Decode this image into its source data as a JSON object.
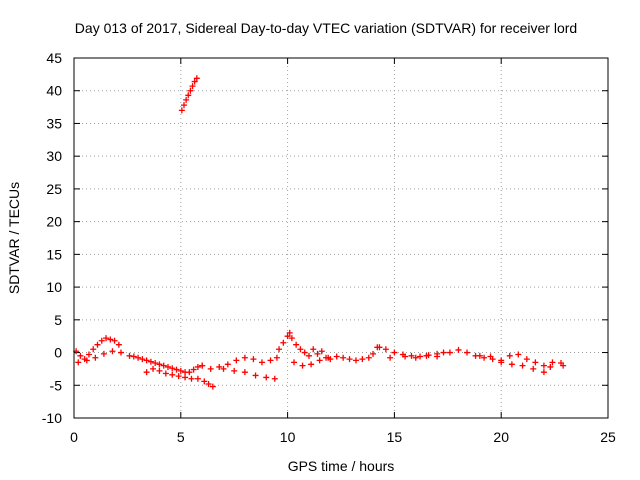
{
  "chart_data": {
    "type": "scatter",
    "title": "Day 013 of 2017, Sidereal Day-to-day VTEC variation (SDTVAR) for receiver lord",
    "xlabel": "GPS time / hours",
    "ylabel": "SDTVAR / TECUs",
    "xlim": [
      0,
      25
    ],
    "ylim": [
      -10,
      45
    ],
    "xticks": [
      0,
      5,
      10,
      15,
      20,
      25
    ],
    "yticks": [
      -10,
      -5,
      0,
      5,
      10,
      15,
      20,
      25,
      30,
      35,
      40,
      45
    ],
    "grid": true,
    "marker": "plus",
    "color": "#ff0000",
    "series": [
      {
        "name": "SDTVAR",
        "x": [
          0.1,
          0.3,
          0.5,
          0.7,
          0.9,
          1.1,
          1.3,
          1.5,
          1.7,
          1.9,
          2.1,
          0.2,
          0.6,
          1.0,
          1.4,
          1.8,
          2.2,
          2.6,
          2.8,
          3.0,
          3.2,
          3.4,
          3.6,
          3.8,
          4.0,
          4.2,
          4.4,
          4.6,
          4.8,
          5.0,
          5.2,
          5.4,
          5.6,
          5.8,
          6.0,
          3.4,
          3.7,
          4.0,
          4.3,
          4.6,
          4.9,
          5.2,
          5.5,
          5.8,
          6.1,
          6.3,
          6.5,
          6.0,
          6.4,
          6.8,
          7.2,
          7.6,
          8.0,
          8.4,
          8.8,
          9.2,
          9.5,
          7.0,
          7.5,
          8.0,
          8.5,
          9.0,
          9.4,
          9.6,
          9.8,
          10.0,
          10.1,
          10.2,
          10.4,
          10.6,
          10.8,
          11.0,
          11.2,
          11.4,
          11.6,
          11.8,
          12.0,
          10.3,
          10.7,
          11.1,
          11.5,
          11.9,
          12.3,
          12.6,
          12.9,
          13.2,
          13.5,
          13.8,
          14.0,
          14.3,
          14.6,
          15.0,
          15.4,
          15.8,
          16.2,
          16.6,
          17.0,
          17.3,
          14.2,
          14.8,
          15.5,
          16.0,
          16.5,
          17.0,
          17.6,
          18.0,
          18.4,
          18.8,
          19.2,
          19.6,
          20.0,
          20.4,
          20.8,
          21.2,
          21.6,
          22.0,
          22.4,
          22.8,
          22.9,
          19.0,
          19.5,
          20.0,
          20.5,
          21.0,
          21.5,
          22.0,
          22.3,
          5.05,
          5.15,
          5.25,
          5.35,
          5.45,
          5.55,
          5.65,
          5.75
        ],
        "y": [
          0.2,
          -0.5,
          -1.0,
          -0.3,
          0.5,
          1.2,
          1.8,
          2.2,
          2.0,
          1.8,
          1.2,
          -1.5,
          -1.2,
          -0.8,
          -0.2,
          0.2,
          0.0,
          -0.5,
          -0.6,
          -0.8,
          -1.0,
          -1.2,
          -1.4,
          -1.6,
          -1.8,
          -2.0,
          -2.2,
          -2.4,
          -2.6,
          -2.8,
          -3.0,
          -3.0,
          -2.6,
          -2.2,
          -2.0,
          -3.0,
          -2.5,
          -2.8,
          -3.2,
          -3.4,
          -3.6,
          -3.8,
          -4.0,
          -4.0,
          -4.4,
          -4.8,
          -5.2,
          -2.0,
          -2.5,
          -2.2,
          -1.8,
          -1.2,
          -0.8,
          -1.0,
          -1.5,
          -1.2,
          -0.8,
          -2.5,
          -2.8,
          -3.0,
          -3.5,
          -3.8,
          -4.0,
          0.5,
          1.5,
          2.5,
          3.0,
          2.2,
          1.2,
          0.5,
          0.0,
          -0.5,
          0.5,
          -0.2,
          0.2,
          -0.8,
          -1.0,
          -1.5,
          -2.0,
          -1.8,
          -1.2,
          -0.8,
          -0.6,
          -0.8,
          -1.0,
          -1.2,
          -1.0,
          -0.8,
          -0.2,
          0.8,
          0.5,
          0.0,
          -0.3,
          -0.5,
          -0.6,
          -0.4,
          -0.2,
          0.0,
          0.8,
          -0.8,
          -0.6,
          -0.8,
          -0.5,
          -0.6,
          0.0,
          0.4,
          0.0,
          -0.5,
          -0.8,
          -1.0,
          -1.2,
          -0.5,
          -0.3,
          -1.0,
          -1.5,
          -2.0,
          -1.5,
          -1.6,
          -2.0,
          -0.5,
          -0.6,
          -1.5,
          -1.8,
          -2.0,
          -2.5,
          -3.0,
          -2.2,
          37.0,
          37.8,
          38.6,
          39.3,
          40.0,
          40.7,
          41.4,
          41.9
        ]
      }
    ]
  }
}
